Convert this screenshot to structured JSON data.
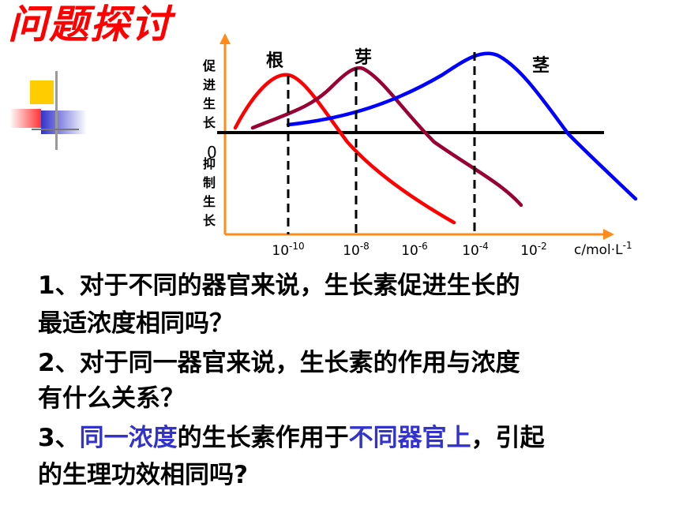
{
  "slide": {
    "title": "问题探讨",
    "questions": [
      {
        "lines": [
          "1、对于不同的器官来说，生长素促进生长的",
          "最适浓度相同吗？"
        ]
      },
      {
        "lines": [
          "2、对于同一器官来说，生长素的作用与浓度",
          "有什么关系？"
        ]
      },
      {
        "parts": [
          {
            "text": "3、",
            "hl": false
          },
          {
            "text": "同一浓度",
            "hl": true
          },
          {
            "text": "的生长素作用于",
            "hl": false
          },
          {
            "text": "不同器官上",
            "hl": true
          },
          {
            "text": "，引起",
            "hl": false
          }
        ],
        "line2": "的生理功效相同吗?"
      }
    ]
  },
  "chart_data": {
    "type": "line",
    "y_label_top": "促进生长",
    "y_label_bottom": "抑制生长",
    "origin_label": "0",
    "x_unit": "c/mol·L",
    "x_unit_exp": "-1",
    "x_ticks": [
      {
        "base": "10",
        "exp": "-10"
      },
      {
        "base": "10",
        "exp": "-8"
      },
      {
        "base": "10",
        "exp": "-6"
      },
      {
        "base": "10",
        "exp": "-4"
      },
      {
        "base": "10",
        "exp": "-2"
      }
    ],
    "series": [
      {
        "name": "根",
        "color": "#ff0000",
        "peak_x": "10^-10"
      },
      {
        "name": "芽",
        "color": "#990033",
        "peak_x": "10^-8"
      },
      {
        "name": "茎",
        "color": "#0000ff",
        "peak_x": "10^-4"
      }
    ],
    "colors": {
      "axis": "#ff8c1a",
      "baseline": "#000000",
      "highlight": "#3333cc",
      "title": "#ff0000"
    }
  }
}
